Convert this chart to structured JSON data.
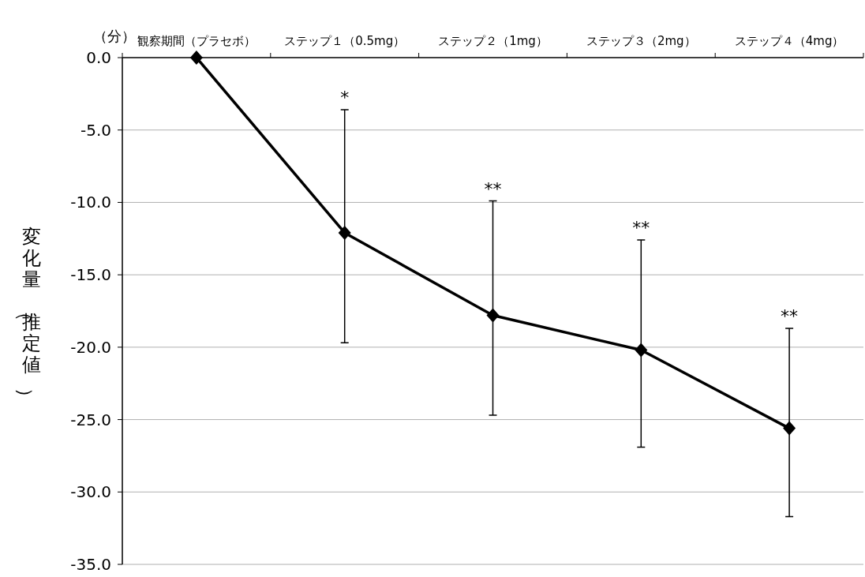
{
  "chart_data": {
    "type": "line",
    "ylabel": "変化量（推定値）",
    "categories": [
      "観察期間（プラセボ）",
      "ステップ１（0.5mg）",
      "ステップ２（1mg）",
      "ステップ３（2mg）",
      "ステップ４（4mg）"
    ],
    "values": [
      0,
      -12.1,
      -17.8,
      -20.2,
      -25.6
    ],
    "errors": [
      null,
      [
        -19.7,
        -3.6
      ],
      [
        -24.7,
        -9.9
      ],
      [
        -26.9,
        -12.6
      ],
      [
        -31.7,
        -18.7
      ]
    ],
    "color": "#000000",
    "marker": "diamond",
    "line_style": "solid",
    "grid": "y",
    "ylim": [
      -35,
      0
    ],
    "yticks": [
      {
        "value": 0,
        "label": "0.0"
      },
      {
        "value": -5,
        "label": "-5.0"
      },
      {
        "value": -10,
        "label": "-10.0"
      },
      {
        "value": -15,
        "label": "-15.0"
      },
      {
        "value": -20,
        "label": "-20.0"
      },
      {
        "value": -25,
        "label": "-25.0"
      },
      {
        "value": -30,
        "label": "-30.0"
      },
      {
        "value": -35,
        "label": "-35.0"
      }
    ],
    "annotations": [
      "（分）",
      {
        "text": "*",
        "x": "ステップ１（0.5mg）",
        "y": -3.6
      },
      {
        "text": "**",
        "x": "ステップ２（1mg）",
        "y": -9.9
      },
      {
        "text": "**",
        "x": "ステップ３（2mg）",
        "y": -12.6
      },
      {
        "text": "**",
        "x": "ステップ４（4mg）",
        "y": -18.7
      }
    ]
  }
}
